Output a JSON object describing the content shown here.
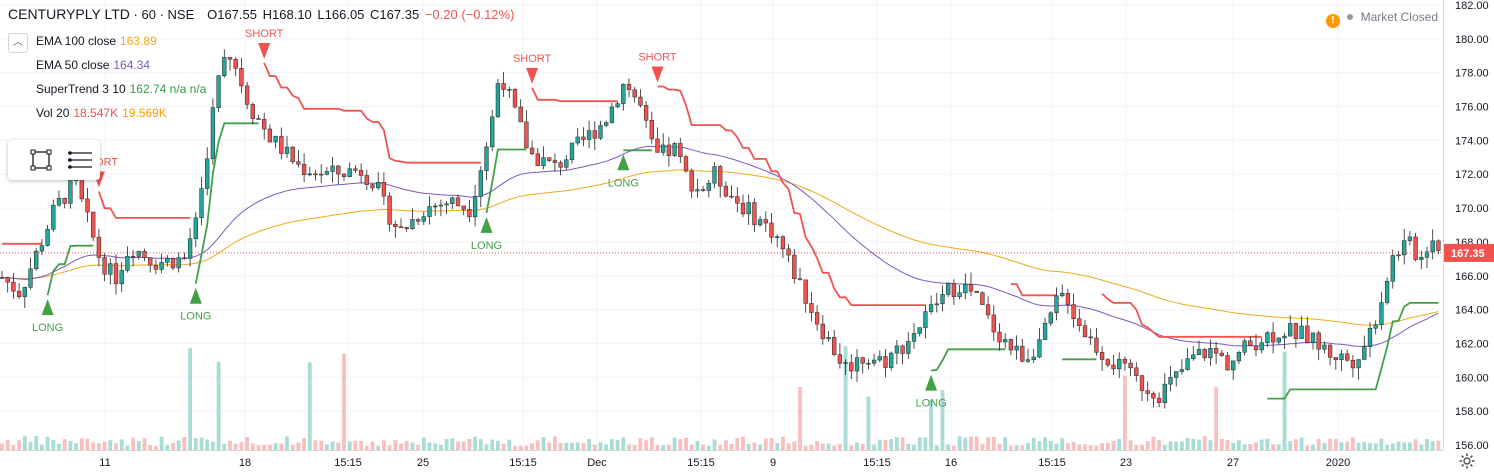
{
  "header": {
    "symbol": "CENTURYPLY LTD",
    "sep1": "·",
    "interval": "60",
    "sep2": "·",
    "exchange": "NSE",
    "open": "O167.55",
    "high": "H168.10",
    "low": "L166.05",
    "close": "C167.35",
    "change": "−0.20 (−0.12%)"
  },
  "indicators": [
    {
      "label": "EMA 100 close",
      "value": "163.89",
      "color": "#f0a91a"
    },
    {
      "label": "EMA 50 close",
      "value": "164.34",
      "color": "#7e57c2"
    },
    {
      "label": "SuperTrend 3 10",
      "value": "162.74  n/a  n/a",
      "color": "#2e9d3f"
    },
    {
      "label": "Vol 20",
      "value": "18.547K",
      "value2": "19.569K",
      "color": "#ef5350",
      "color2": "#ff9800"
    }
  ],
  "market_status": "Market Closed",
  "icons": [
    "chevron-up-icon",
    "rectangle-tool-icon",
    "lines-tool-icon",
    "warning-icon",
    "gear-icon"
  ],
  "colors": {
    "up": "#26a69a",
    "down": "#ef5350",
    "ema100": "#f0a91a",
    "ema50": "#7e57c2",
    "st_up": "#43a047",
    "st_down": "#ef5350",
    "last_price": "#ef5350"
  },
  "chart_data": {
    "type": "candlestick",
    "last_price": 167.35,
    "ylim": [
      155.7,
      182.3
    ],
    "y_ticks": [
      156,
      158,
      160,
      162,
      164,
      166,
      168,
      170,
      172,
      174,
      176,
      178,
      180,
      182
    ],
    "x_ticks": [
      "11",
      "18",
      "15:15",
      "25",
      "15:15",
      "Dec",
      "15:15",
      "9",
      "15:15",
      "16",
      "15:15",
      "23",
      "27",
      "2020"
    ],
    "price_path": [
      [
        0,
        166.0
      ],
      [
        0.02,
        165.0
      ],
      [
        0.04,
        167.8
      ],
      [
        0.055,
        170.0
      ],
      [
        0.075,
        171.5
      ],
      [
        0.1,
        167.0
      ],
      [
        0.115,
        165.8
      ],
      [
        0.13,
        167.8
      ],
      [
        0.155,
        166.8
      ],
      [
        0.185,
        167.0
      ],
      [
        0.2,
        170.5
      ],
      [
        0.215,
        176.5
      ],
      [
        0.225,
        179.5
      ],
      [
        0.235,
        178.5
      ],
      [
        0.25,
        176.0
      ],
      [
        0.27,
        174.2
      ],
      [
        0.3,
        172.4
      ],
      [
        0.33,
        172.0
      ],
      [
        0.36,
        172.3
      ],
      [
        0.375,
        171.5
      ],
      [
        0.385,
        170.0
      ],
      [
        0.4,
        168.6
      ],
      [
        0.425,
        170.0
      ],
      [
        0.45,
        170.4
      ],
      [
        0.47,
        170.0
      ],
      [
        0.49,
        174.5
      ],
      [
        0.5,
        178.2
      ],
      [
        0.51,
        176.4
      ],
      [
        0.53,
        173.2
      ],
      [
        0.555,
        172.4
      ],
      [
        0.58,
        173.8
      ],
      [
        0.605,
        175.2
      ],
      [
        0.625,
        177.5
      ],
      [
        0.64,
        176.0
      ],
      [
        0.655,
        173.0
      ],
      [
        0.675,
        173.5
      ],
      [
        0.685,
        172.0
      ],
      [
        0.7,
        171.0
      ],
      [
        0.715,
        172.0
      ],
      [
        0.735,
        170.5
      ],
      [
        0.755,
        169.5
      ],
      [
        0.775,
        168.5
      ],
      [
        0.8,
        165.5
      ],
      [
        0.815,
        163.6
      ],
      [
        0.83,
        162.0
      ],
      [
        0.845,
        160.6
      ],
      [
        0.865,
        161.2
      ],
      [
        0.885,
        161.0
      ],
      [
        0.905,
        162.0
      ],
      [
        0.925,
        163.5
      ],
      [
        0.945,
        165.0
      ],
      [
        0.96,
        165.5
      ],
      [
        0.975,
        164.8
      ],
      [
        0.99,
        163.2
      ],
      [
        1.0,
        162.5
      ]
    ],
    "price_path_segment2": [
      [
        0,
        162.5
      ],
      [
        0.03,
        161.6
      ],
      [
        0.06,
        161.2
      ],
      [
        0.1,
        162.5
      ],
      [
        0.13,
        164.5
      ],
      [
        0.15,
        165.0
      ],
      [
        0.17,
        163.6
      ],
      [
        0.2,
        162.4
      ],
      [
        0.24,
        161.2
      ],
      [
        0.28,
        160.4
      ],
      [
        0.32,
        159.6
      ],
      [
        0.36,
        159.0
      ],
      [
        0.4,
        160.0
      ],
      [
        0.44,
        161.2
      ],
      [
        0.48,
        161.6
      ],
      [
        0.52,
        160.8
      ],
      [
        0.56,
        161.8
      ],
      [
        0.6,
        162.4
      ],
      [
        0.65,
        162.8
      ],
      [
        0.7,
        162.4
      ],
      [
        0.75,
        161.4
      ],
      [
        0.8,
        161.0
      ],
      [
        0.83,
        162.0
      ],
      [
        0.86,
        164.0
      ],
      [
        0.88,
        166.0
      ],
      [
        0.9,
        167.6
      ],
      [
        0.93,
        167.8
      ],
      [
        0.96,
        167.0
      ],
      [
        0.98,
        168.6
      ],
      [
        1.0,
        167.35
      ]
    ],
    "signals": [
      {
        "type": "LONG",
        "price": 169.8
      },
      {
        "type": "SHORT",
        "price": 173.0
      },
      {
        "type": "LONG",
        "price": 168.5
      },
      {
        "type": "SHORT",
        "price": 178.4
      },
      {
        "type": "LONG",
        "price": 173.5
      },
      {
        "type": "SHORT",
        "price": 174.5
      },
      {
        "type": "LONG",
        "price": 163.8
      },
      {
        "type": "SHORT",
        "price": 166.5
      },
      {
        "type": "LONG",
        "price": 162.2
      }
    ],
    "volume_axis_note": "volume bars at bottom, not scaled to price axis"
  }
}
